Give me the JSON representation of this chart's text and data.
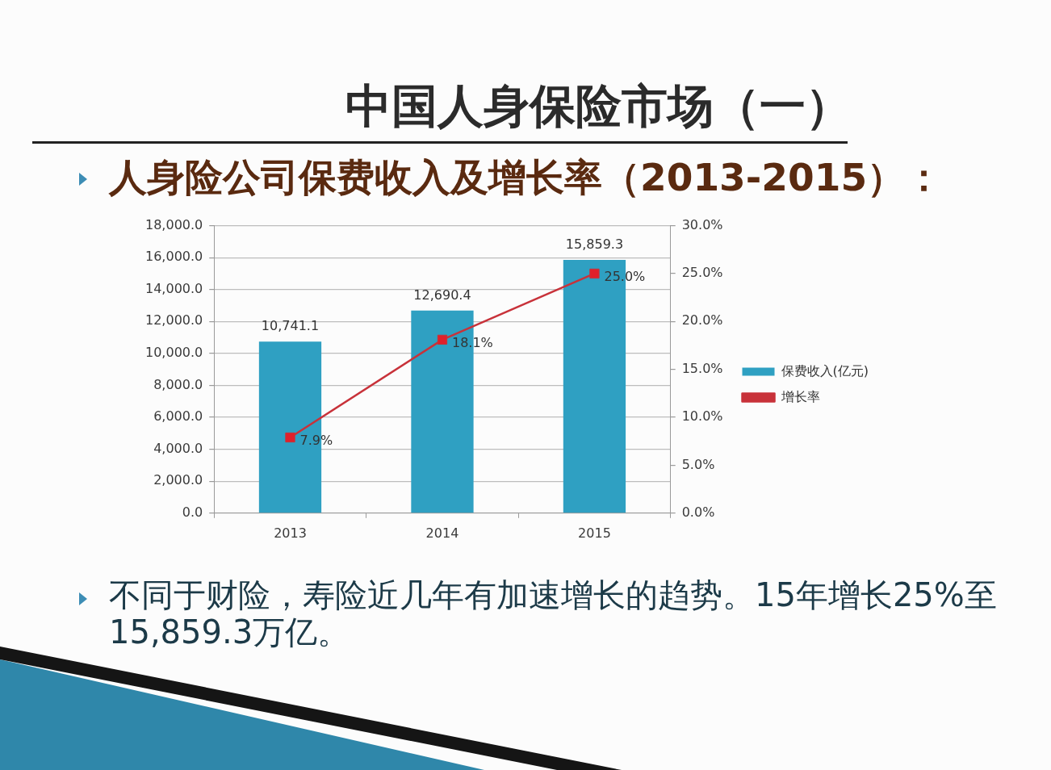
{
  "chart_data": {
    "type": "bar",
    "title": "中国人身保险市场（一）",
    "subtitle": "人身险公司保费收入及增长率（2013-2015）：",
    "categories": [
      "2013",
      "2014",
      "2015"
    ],
    "series": [
      {
        "name": "保费收入(亿元)",
        "color": "#2fa0c2",
        "values": [
          10741.1,
          12690.4,
          15859.3
        ],
        "value_labels": [
          "10,741.1",
          "12,690.4",
          "15,859.3"
        ]
      },
      {
        "name": "增长率",
        "type": "line",
        "axis": "y2",
        "color": "#c8323a",
        "marker": "square",
        "values": [
          7.9,
          18.1,
          25.0
        ],
        "value_labels": [
          "7.9%",
          "18.1%",
          "25.0%"
        ]
      }
    ],
    "ylim": [
      0,
      18000
    ],
    "yticks": [
      {
        "value": 0,
        "label": "0.0"
      },
      {
        "value": 2000,
        "label": "2,000.0"
      },
      {
        "value": 4000,
        "label": "4,000.0"
      },
      {
        "value": 6000,
        "label": "6,000.0"
      },
      {
        "value": 8000,
        "label": "8,000.0"
      },
      {
        "value": 10000,
        "label": "10,000.0"
      },
      {
        "value": 12000,
        "label": "12,000.0"
      },
      {
        "value": 14000,
        "label": "14,000.0"
      },
      {
        "value": 16000,
        "label": "16,000.0"
      },
      {
        "value": 18000,
        "label": "18,000.0"
      }
    ],
    "y2lim": [
      0,
      30
    ],
    "y2ticks": [
      {
        "value": 0,
        "label": "0.0%"
      },
      {
        "value": 5,
        "label": "5.0%"
      },
      {
        "value": 10,
        "label": "10.0%"
      },
      {
        "value": 15,
        "label": "15.0%"
      },
      {
        "value": 20,
        "label": "20.0%"
      },
      {
        "value": 25,
        "label": "25.0%"
      },
      {
        "value": 30,
        "label": "30.0%"
      }
    ],
    "grid": "y",
    "legend": "right",
    "annotations": [
      "不同于财险，寿险近几年有加速增长的趋势。15年增长25%至15,859.3万亿。"
    ]
  }
}
